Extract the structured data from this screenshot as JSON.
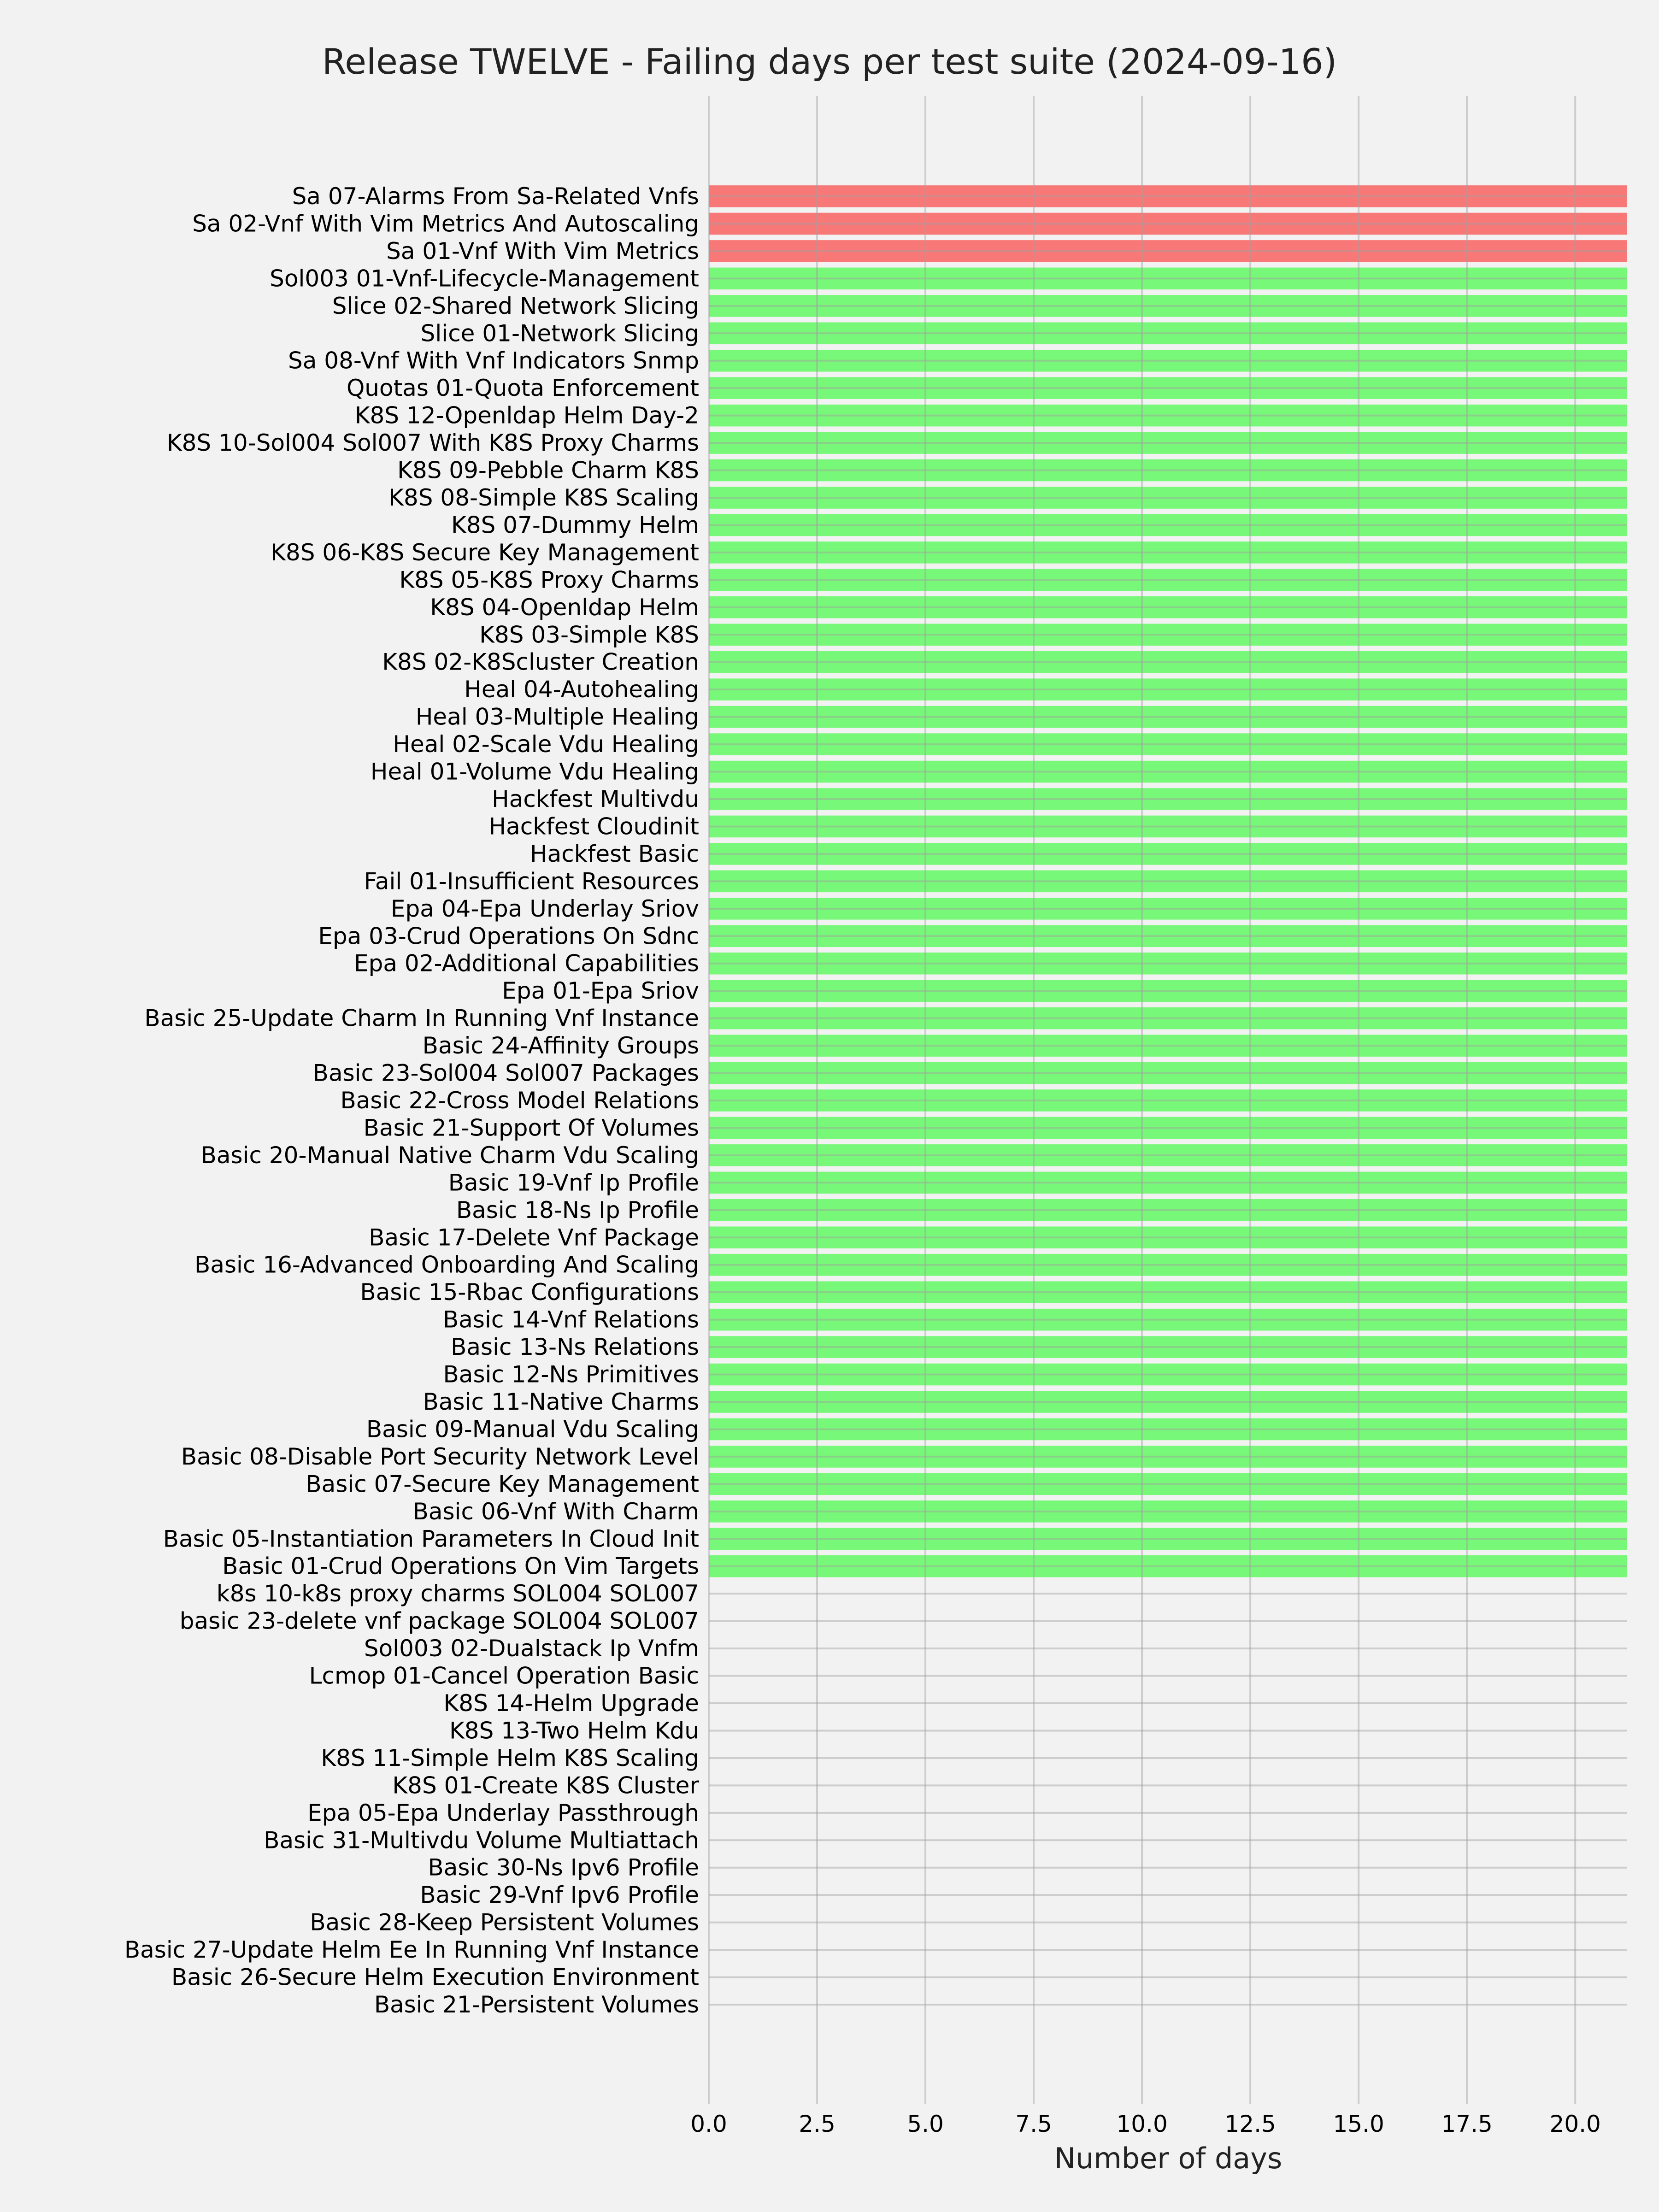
{
  "chart_data": {
    "type": "bar",
    "orientation": "horizontal",
    "title": "Release TWELVE - Failing days per test suite (2024-09-16)",
    "xlabel": "Number of days",
    "ylabel": "",
    "xlim": [
      0,
      21.2
    ],
    "xticks": [
      "0.0",
      "2.5",
      "5.0",
      "7.5",
      "10.0",
      "12.5",
      "15.0",
      "17.5",
      "20.0"
    ],
    "grid": true,
    "colors": {
      "fail": "#f87878",
      "pass": "#78f878",
      "background": "#f2f2f2",
      "grid": "#cbcbcb"
    },
    "categories": [
      "Sa 07-Alarms From Sa-Related Vnfs",
      "Sa 02-Vnf With Vim Metrics And Autoscaling",
      "Sa 01-Vnf With Vim Metrics",
      "Sol003 01-Vnf-Lifecycle-Management",
      "Slice 02-Shared Network Slicing",
      "Slice 01-Network Slicing",
      "Sa 08-Vnf With Vnf Indicators Snmp",
      "Quotas 01-Quota Enforcement",
      "K8S 12-Openldap Helm Day-2",
      "K8S 10-Sol004 Sol007 With K8S Proxy Charms",
      "K8S 09-Pebble Charm K8S",
      "K8S 08-Simple K8S Scaling",
      "K8S 07-Dummy Helm",
      "K8S 06-K8S Secure Key Management",
      "K8S 05-K8S Proxy Charms",
      "K8S 04-Openldap Helm",
      "K8S 03-Simple K8S",
      "K8S 02-K8Scluster Creation",
      "Heal 04-Autohealing",
      "Heal 03-Multiple Healing",
      "Heal 02-Scale Vdu Healing",
      "Heal 01-Volume Vdu Healing",
      "Hackfest Multivdu",
      "Hackfest Cloudinit",
      "Hackfest Basic",
      "Fail 01-Insufficient Resources",
      "Epa 04-Epa Underlay Sriov",
      "Epa 03-Crud Operations On Sdnc",
      "Epa 02-Additional Capabilities",
      "Epa 01-Epa Sriov",
      "Basic 25-Update Charm In Running Vnf Instance",
      "Basic 24-Affinity Groups",
      "Basic 23-Sol004 Sol007 Packages",
      "Basic 22-Cross Model Relations",
      "Basic 21-Support Of Volumes",
      "Basic 20-Manual Native Charm Vdu Scaling",
      "Basic 19-Vnf Ip Profile",
      "Basic 18-Ns Ip Profile",
      "Basic 17-Delete Vnf Package",
      "Basic 16-Advanced Onboarding And Scaling",
      "Basic 15-Rbac Configurations",
      "Basic 14-Vnf Relations",
      "Basic 13-Ns Relations",
      "Basic 12-Ns Primitives",
      "Basic 11-Native Charms",
      "Basic 09-Manual Vdu Scaling",
      "Basic 08-Disable Port Security Network Level",
      "Basic 07-Secure Key Management",
      "Basic 06-Vnf With Charm",
      "Basic 05-Instantiation Parameters In Cloud Init",
      "Basic 01-Crud Operations On Vim Targets",
      "k8s 10-k8s proxy charms SOL004 SOL007",
      "basic 23-delete vnf package SOL004 SOL007",
      "Sol003 02-Dualstack Ip Vnfm",
      "Lcmop 01-Cancel Operation Basic",
      "K8S 14-Helm Upgrade",
      "K8S 13-Two Helm Kdu",
      "K8S 11-Simple Helm K8S Scaling",
      "K8S 01-Create K8S Cluster",
      "Epa 05-Epa Underlay Passthrough",
      "Basic 31-Multivdu Volume Multiattach",
      "Basic 30-Ns Ipv6 Profile",
      "Basic 29-Vnf Ipv6 Profile",
      "Basic 28-Keep Persistent Volumes",
      "Basic 27-Update Helm Ee In Running Vnf Instance",
      "Basic 26-Secure Helm Execution Environment",
      "Basic 21-Persistent Volumes"
    ],
    "values": [
      21.2,
      21.2,
      21.2,
      21.2,
      21.2,
      21.2,
      21.2,
      21.2,
      21.2,
      21.2,
      21.2,
      21.2,
      21.2,
      21.2,
      21.2,
      21.2,
      21.2,
      21.2,
      21.2,
      21.2,
      21.2,
      21.2,
      21.2,
      21.2,
      21.2,
      21.2,
      21.2,
      21.2,
      21.2,
      21.2,
      21.2,
      21.2,
      21.2,
      21.2,
      21.2,
      21.2,
      21.2,
      21.2,
      21.2,
      21.2,
      21.2,
      21.2,
      21.2,
      21.2,
      21.2,
      21.2,
      21.2,
      21.2,
      21.2,
      21.2,
      21.2,
      0,
      0,
      0,
      0,
      0,
      0,
      0,
      0,
      0,
      0,
      0,
      0,
      0,
      0,
      0,
      0
    ],
    "status": [
      "fail",
      "fail",
      "fail",
      "pass",
      "pass",
      "pass",
      "pass",
      "pass",
      "pass",
      "pass",
      "pass",
      "pass",
      "pass",
      "pass",
      "pass",
      "pass",
      "pass",
      "pass",
      "pass",
      "pass",
      "pass",
      "pass",
      "pass",
      "pass",
      "pass",
      "pass",
      "pass",
      "pass",
      "pass",
      "pass",
      "pass",
      "pass",
      "pass",
      "pass",
      "pass",
      "pass",
      "pass",
      "pass",
      "pass",
      "pass",
      "pass",
      "pass",
      "pass",
      "pass",
      "pass",
      "pass",
      "pass",
      "pass",
      "pass",
      "pass",
      "pass",
      "none",
      "none",
      "none",
      "none",
      "none",
      "none",
      "none",
      "none",
      "none",
      "none",
      "none",
      "none",
      "none",
      "none",
      "none",
      "none"
    ]
  }
}
